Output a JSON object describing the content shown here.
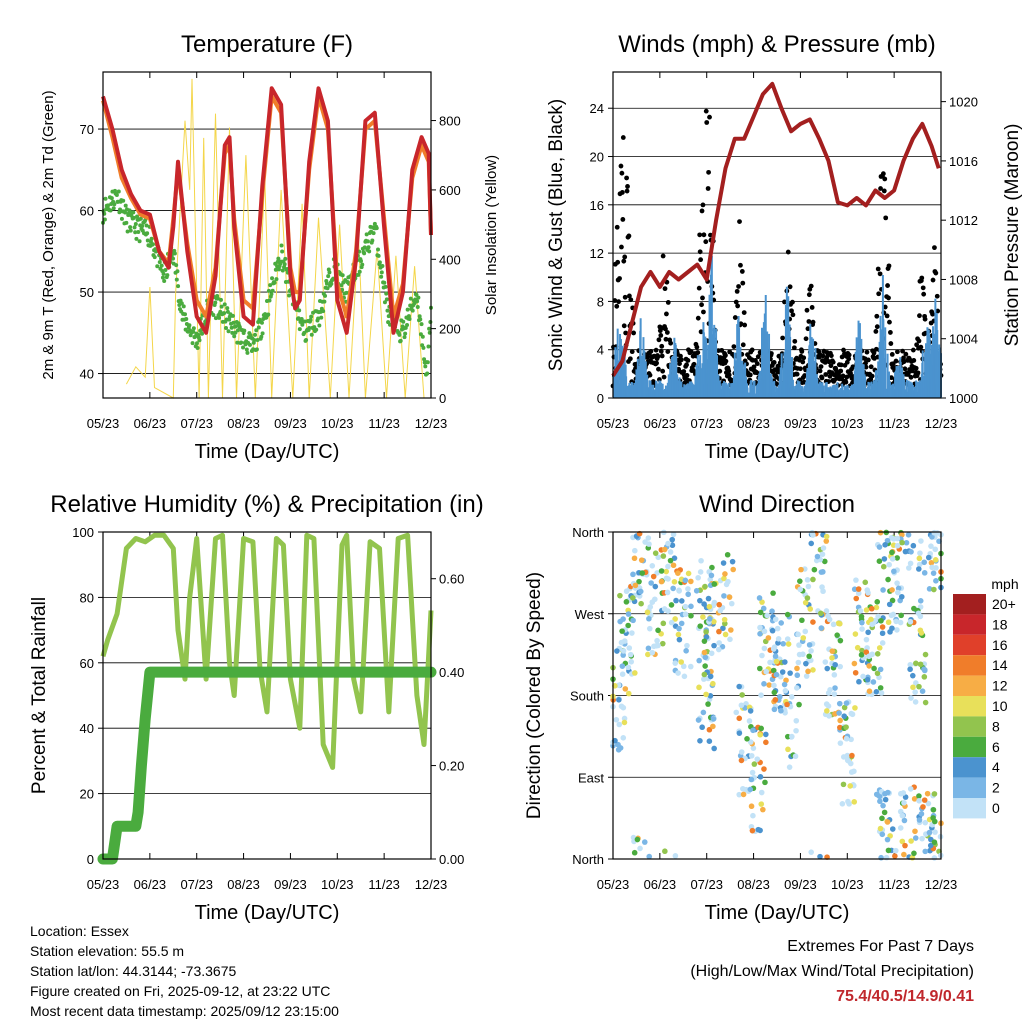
{
  "x_tick_labels": [
    "05/23",
    "06/23",
    "07/23",
    "08/23",
    "09/23",
    "10/23",
    "11/23",
    "12/23"
  ],
  "x_label": "Time (Day/UTC)",
  "chart_data": [
    {
      "type": "line",
      "title": "Temperature (F)",
      "ylabel_left": "2m & 9m T (Red, Orange) & 2m Td (Green)",
      "ylabel_right": "Solar Insolation (Yellow)",
      "ylim": [
        37,
        77
      ],
      "y2lim": [
        0,
        940
      ],
      "yticks": [
        40,
        50,
        60,
        70
      ],
      "y2ticks": [
        0,
        200,
        400,
        600,
        800
      ],
      "y2_tick_labels": [
        "0",
        "200",
        "400",
        "600",
        "800"
      ],
      "colors": {
        "temp_2m": "#c8262b",
        "temp_9m": "#f07d2a",
        "dewpoint": "#4aab3e",
        "solar": "#f4d64a"
      },
      "series": [
        {
          "name": "2m T",
          "x": [
            0,
            0.2,
            0.4,
            0.6,
            0.8,
            1.0,
            1.2,
            1.4,
            1.5,
            1.6,
            1.8,
            2.0,
            2.2,
            2.4,
            2.6,
            2.7,
            2.8,
            3.0,
            3.2,
            3.4,
            3.6,
            3.8,
            4.0,
            4.1,
            4.2,
            4.4,
            4.6,
            4.8,
            5.0,
            5.2,
            5.4,
            5.6,
            5.8,
            6.0,
            6.2,
            6.4,
            6.6,
            6.8,
            6.95,
            7.0
          ],
          "values": [
            74,
            70,
            65,
            62,
            60,
            59.5,
            55,
            53,
            58,
            66,
            55,
            47,
            45,
            52,
            68,
            69,
            58,
            47,
            46,
            63,
            75,
            73,
            52,
            48,
            49,
            66,
            75,
            71,
            49,
            45,
            54,
            71,
            72,
            58,
            45,
            50,
            65,
            69,
            67,
            57
          ]
        },
        {
          "name": "9m T",
          "x": [
            0,
            0.2,
            0.4,
            0.6,
            0.8,
            1.0,
            1.2,
            1.4,
            1.5,
            1.6,
            1.8,
            2.0,
            2.2,
            2.4,
            2.6,
            2.7,
            2.8,
            3.0,
            3.2,
            3.4,
            3.6,
            3.8,
            4.0,
            4.1,
            4.2,
            4.4,
            4.6,
            4.8,
            5.0,
            5.2,
            5.4,
            5.6,
            5.8,
            6.0,
            6.2,
            6.4,
            6.6,
            6.8,
            6.95,
            7.0
          ],
          "values": [
            73.5,
            69,
            64,
            61.5,
            59.5,
            59,
            55,
            53.5,
            59,
            65,
            56,
            49,
            47,
            53,
            67,
            68,
            59,
            49,
            48,
            62,
            74,
            72,
            53,
            50,
            50,
            65,
            74,
            70,
            51,
            47,
            55,
            70,
            71,
            59,
            47,
            51,
            64,
            68,
            66,
            57
          ]
        },
        {
          "name": "2m Td",
          "x": [
            0,
            0.3,
            0.5,
            0.7,
            1.0,
            1.3,
            1.5,
            1.7,
            2.0,
            2.3,
            2.6,
            2.9,
            3.2,
            3.5,
            3.8,
            4.0,
            4.3,
            4.6,
            4.9,
            5.2,
            5.5,
            5.8,
            6.1,
            6.4,
            6.7,
            6.9,
            7.0
          ],
          "values": [
            60,
            62,
            59,
            58,
            57,
            52,
            55,
            47,
            44,
            49,
            47,
            45,
            43,
            48,
            55,
            50,
            45,
            47,
            53,
            50,
            54,
            58,
            47,
            45,
            50,
            40,
            47
          ]
        },
        {
          "name": "Solar",
          "x": [
            0.5,
            0.7,
            0.9,
            1.0,
            1.1,
            1.5,
            1.55,
            1.75,
            1.85,
            1.9,
            2.05,
            2.15,
            2.25,
            2.4,
            2.55,
            2.7,
            2.85,
            3.05,
            3.25,
            3.45,
            3.6,
            3.8,
            4.05,
            4.25,
            4.4,
            4.6,
            4.85,
            5.05,
            5.25,
            5.45,
            5.6,
            5.85,
            6.05,
            6.25,
            6.45,
            6.65,
            6.85,
            7.0
          ],
          "values": [
            40,
            90,
            60,
            320,
            30,
            0,
            300,
            800,
            600,
            920,
            0,
            750,
            0,
            820,
            0,
            780,
            0,
            700,
            0,
            640,
            0,
            600,
            0,
            560,
            0,
            520,
            0,
            500,
            0,
            470,
            0,
            430,
            0,
            410,
            0,
            380,
            0,
            0
          ]
        }
      ]
    },
    {
      "type": "scatter",
      "title": "Winds (mph) & Pressure (mb)",
      "ylabel_left": "Sonic Wind & Gust (Blue, Black)",
      "ylabel_right": "Station Pressure (Maroon)",
      "ylim": [
        0,
        27
      ],
      "y2lim": [
        1000,
        1022
      ],
      "yticks": [
        0,
        4,
        8,
        12,
        16,
        20,
        24
      ],
      "y2ticks": [
        1000,
        1004,
        1008,
        1012,
        1016,
        1020
      ],
      "colors": {
        "wind": "#4b93cf",
        "gust": "#000000",
        "pressure": "#a31f1f"
      },
      "series": [
        {
          "name": "Pressure",
          "x": [
            0,
            0.2,
            0.4,
            0.6,
            0.8,
            1.0,
            1.2,
            1.4,
            1.6,
            1.8,
            2.0,
            2.2,
            2.4,
            2.6,
            2.8,
            3.0,
            3.2,
            3.4,
            3.6,
            3.8,
            4.0,
            4.2,
            4.4,
            4.6,
            4.8,
            5.0,
            5.2,
            5.4,
            5.6,
            5.8,
            6.0,
            6.2,
            6.4,
            6.6,
            6.8,
            6.95
          ],
          "values": [
            1001.5,
            1002.5,
            1005,
            1007.5,
            1008.5,
            1007.5,
            1008.5,
            1008,
            1008.5,
            1009,
            1008,
            1012,
            1015.5,
            1017.5,
            1017.5,
            1019,
            1020.5,
            1021.2,
            1019.5,
            1018,
            1018.5,
            1018.8,
            1017.5,
            1016,
            1013.2,
            1013,
            1013.5,
            1013,
            1014,
            1013.5,
            1014,
            1016,
            1017.5,
            1018.5,
            1017,
            1015.5
          ]
        },
        {
          "name": "Sonic Wind peaks",
          "x": [
            0.15,
            0.6,
            1.3,
            1.9,
            2.1,
            2.7,
            3.25,
            3.7,
            4.25,
            5.25,
            5.75,
            6.1,
            6.7,
            6.9
          ],
          "values": [
            10,
            7,
            6,
            9,
            13,
            9,
            10,
            11,
            8,
            7,
            11,
            5,
            8,
            10
          ]
        },
        {
          "name": "Gust peaks",
          "x": [
            0.1,
            0.2,
            0.3,
            1.1,
            1.9,
            2.0,
            2.05,
            2.7,
            3.75,
            4.2,
            5.75,
            5.8,
            6.6,
            6.85
          ],
          "values": [
            17,
            23.5,
            20,
            13,
            18,
            25,
            24,
            15,
            15,
            10,
            22,
            20,
            12,
            13
          ]
        }
      ]
    },
    {
      "type": "line",
      "title": "Relative Humidity (%) & Precipitation (in)",
      "ylabel_left": "Percent & Total Rainfall",
      "ylim": [
        0,
        100
      ],
      "y2lim": [
        0,
        0.7
      ],
      "yticks": [
        0,
        20,
        40,
        60,
        80,
        100
      ],
      "y2ticks": [
        0,
        0.2,
        0.4,
        0.6
      ],
      "y2_tick_labels": [
        "0.00",
        "0.20",
        "0.40",
        "0.60"
      ],
      "colors": {
        "rh": "#92c44e",
        "precip": "#4aab3e"
      },
      "series": [
        {
          "name": "RH",
          "x": [
            0,
            0.1,
            0.3,
            0.5,
            0.7,
            0.9,
            1.1,
            1.3,
            1.5,
            1.6,
            1.75,
            1.85,
            2.0,
            2.2,
            2.4,
            2.55,
            2.7,
            2.8,
            3.0,
            3.2,
            3.35,
            3.5,
            3.7,
            3.85,
            4.0,
            4.2,
            4.35,
            4.5,
            4.7,
            4.9,
            5.1,
            5.2,
            5.35,
            5.5,
            5.7,
            5.9,
            6.1,
            6.3,
            6.5,
            6.7,
            6.85,
            7.0
          ],
          "values": [
            62,
            67,
            75,
            95,
            98,
            97,
            99,
            99,
            95,
            70,
            55,
            80,
            98,
            55,
            98,
            99,
            60,
            50,
            98,
            97,
            58,
            45,
            98,
            96,
            55,
            40,
            99,
            98,
            35,
            28,
            96,
            99,
            55,
            45,
            97,
            95,
            45,
            98,
            99,
            50,
            35,
            76
          ]
        },
        {
          "name": "Precip",
          "x": [
            0,
            0.2,
            0.3,
            0.5,
            0.7,
            0.75,
            0.82,
            0.9,
            1.0,
            1.1,
            7.0
          ],
          "values": [
            0,
            0,
            0.07,
            0.07,
            0.07,
            0.1,
            0.2,
            0.3,
            0.4,
            0.4,
            0.4
          ]
        }
      ]
    },
    {
      "type": "scatter",
      "title": "Wind Direction",
      "ylabel": "Direction (Colored By Speed)",
      "ylim": [
        0,
        360
      ],
      "yticks": [
        0,
        90,
        180,
        270,
        360
      ],
      "y_tick_labels": [
        "North",
        "East",
        "South",
        "West",
        "North"
      ],
      "legend": {
        "title": "mph",
        "labels": [
          "20+",
          "18",
          "16",
          "14",
          "12",
          "10",
          "8",
          "6",
          "4",
          "2",
          "0"
        ],
        "colors": [
          "#a31f1f",
          "#c8262b",
          "#e0402a",
          "#f07d2a",
          "#f7ad45",
          "#e8e05a",
          "#92c44e",
          "#4aab3e",
          "#4b93cf",
          "#7ab6e6",
          "#c2e2f7"
        ]
      },
      "series": [
        {
          "name": "Direction samples",
          "x": [
            0.1,
            0.3,
            0.6,
            0.9,
            1.2,
            1.5,
            1.95,
            2.0,
            2.1,
            2.4,
            2.8,
            3.1,
            3.3,
            3.6,
            3.8,
            4.1,
            4.4,
            4.7,
            5.0,
            5.3,
            5.6,
            5.8,
            6.0,
            6.3,
            6.5,
            6.7,
            6.9
          ],
          "values": [
            180,
            240,
            340,
            285,
            320,
            260,
            270,
            180,
            250,
            290,
            130,
            90,
            235,
            220,
            160,
            260,
            310,
            210,
            120,
            250,
            240,
            20,
            310,
            20,
            230,
            15,
            355
          ]
        }
      ]
    }
  ],
  "info": {
    "location": "Location: Essex",
    "elevation": "Station elevation: 55.5 m",
    "latlon": "Station lat/lon: 44.3144; -73.3675",
    "created": "Figure created on Fri, 2025-09-12, at 23:22 UTC",
    "recent": "Most recent data timestamp: 2025/09/12 23:15:00"
  },
  "extremes": {
    "line1": "Extremes For Past 7 Days",
    "line2": "(High/Low/Max Wind/Total Precipitation)",
    "values": "75.4/40.5/14.9/0.41"
  }
}
